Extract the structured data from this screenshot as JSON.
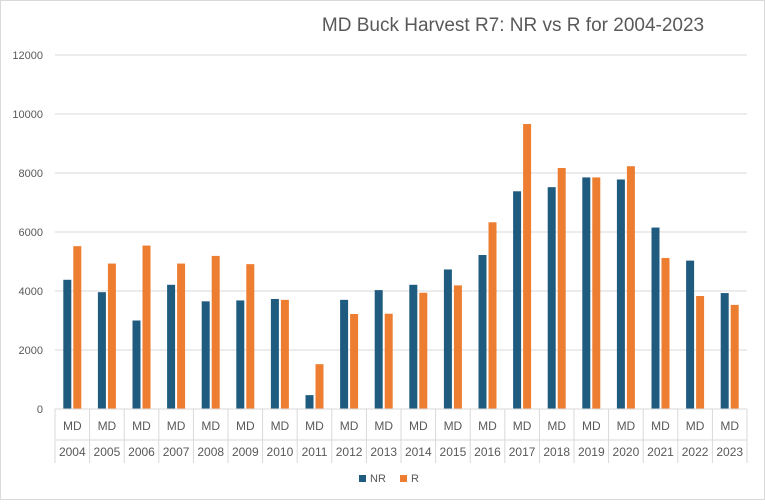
{
  "chart_data": {
    "type": "bar",
    "title": "MD Buck Harvest R7:  NR vs R  for 2004-2023",
    "xlabel": "",
    "ylabel": "",
    "ylim": [
      0,
      12000
    ],
    "yticks": [
      "0",
      "2000",
      "4000",
      "6000",
      "8000",
      "10000",
      "12000"
    ],
    "grid": true,
    "legend_position": "bottom",
    "category_group_label": "MD",
    "categories": [
      "2004",
      "2005",
      "2006",
      "2007",
      "2008",
      "2009",
      "2010",
      "2011",
      "2012",
      "2013",
      "2014",
      "2015",
      "2016",
      "2017",
      "2018",
      "2019",
      "2020",
      "2021",
      "2022",
      "2023"
    ],
    "series": [
      {
        "name": "NR",
        "color": "#1F5B7E",
        "values": [
          4380,
          3960,
          3000,
          4210,
          3650,
          3680,
          3730,
          470,
          3700,
          4030,
          4210,
          4730,
          5220,
          7380,
          7520,
          7850,
          7780,
          6150,
          5030,
          3930
        ]
      },
      {
        "name": "R",
        "color": "#ED7D31",
        "values": [
          5520,
          4930,
          5540,
          4930,
          5190,
          4910,
          3700,
          1520,
          3220,
          3230,
          3940,
          4190,
          6330,
          9660,
          8170,
          7850,
          8230,
          5120,
          3830,
          3530
        ]
      }
    ]
  }
}
